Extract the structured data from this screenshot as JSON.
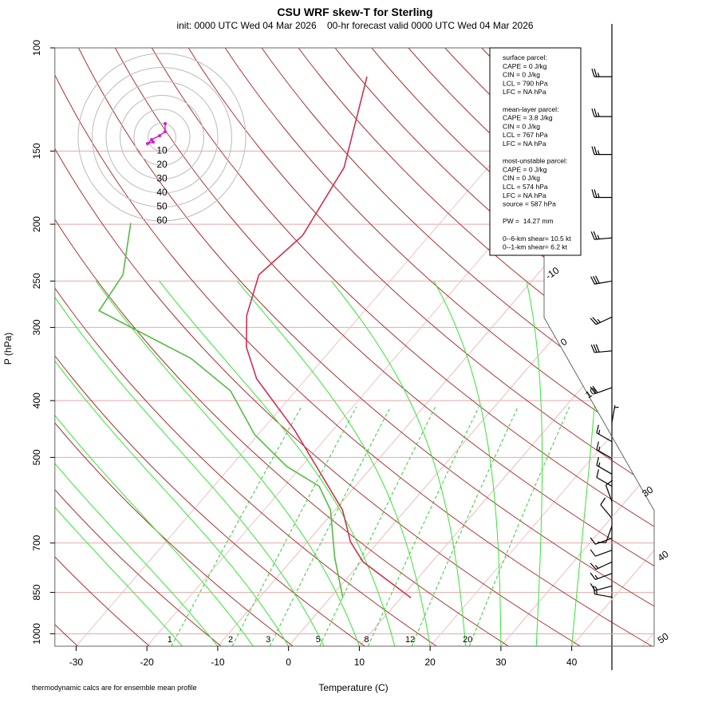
{
  "chart_data": {
    "type": "skewt",
    "title": "CSU WRF skew-T for Sterling",
    "subtitle": "init: 0000 UTC Wed 04 Mar 2026    00-hr forecast valid 0000 UTC Wed 04 Mar 2026",
    "xlabel": "Temperature (C)",
    "ylabel": "P (hPa)",
    "footnote": "thermodynamic calcs are for ensemble mean profile",
    "xlim": [
      -33,
      45
    ],
    "xticks": [
      -30,
      -20,
      -10,
      0,
      10,
      20,
      30,
      40
    ],
    "ylim": [
      1050,
      100
    ],
    "yticks": [
      100,
      150,
      200,
      250,
      300,
      400,
      500,
      700,
      850,
      1000
    ],
    "log_scale": "y",
    "grid": true,
    "isotherm_labels": [
      -10,
      0,
      10,
      30,
      40,
      50
    ],
    "mixing_ratio_lines": [
      1,
      2,
      3,
      5,
      8,
      12,
      20
    ],
    "series": [
      {
        "name": "temperature",
        "color": "#d03050",
        "pressure": [
          868,
          754,
          697,
          615,
          526,
          450,
          367,
          324,
          286,
          244,
          209,
          160,
          112
        ],
        "values": [
          11.4,
          0.3,
          -3.9,
          -8.9,
          -17.1,
          -25.3,
          -37.0,
          -42.3,
          -46.1,
          -49.3,
          -47.9,
          -50.3,
          -58.1
        ]
      },
      {
        "name": "dewpoint",
        "color": "#55bb44",
        "pressure": [
          868,
          742,
          615,
          560,
          518,
          457,
          385,
          339,
          281,
          244,
          199
        ],
        "values": [
          1.8,
          -4.2,
          -10.6,
          -15.1,
          -22.1,
          -30.5,
          -39.2,
          -48.7,
          -67.5,
          -68.5,
          -73.7
        ]
      }
    ],
    "hodograph": {
      "rings": [
        10,
        20,
        30,
        40,
        50,
        60
      ],
      "color": "#cc22cc",
      "u": [
        2.3,
        2.3,
        -1.7,
        -7.4,
        -10.3,
        -6.3
      ],
      "v": [
        9.7,
        4,
        1.1,
        -1.7,
        -4.6,
        -3.4
      ]
    },
    "winds": {
      "pressure": [
        112,
        131,
        152,
        180,
        211,
        250,
        288,
        329,
        380,
        436,
        470,
        502,
        534,
        560,
        595,
        635,
        655,
        687,
        720,
        754,
        789,
        829,
        866
      ],
      "direction": [
        270,
        270,
        270,
        270,
        265,
        260,
        245,
        265,
        250,
        10,
        300,
        300,
        300,
        300,
        340,
        320,
        200,
        250,
        250,
        245,
        250,
        255,
        280
      ],
      "speed": [
        25,
        25,
        25,
        25,
        25,
        30,
        25,
        30,
        20,
        5,
        15,
        15,
        15,
        10,
        10,
        10,
        10,
        10,
        10,
        15,
        15,
        15,
        15
      ]
    },
    "info_box": [
      [
        "surface parcel:",
        "CAPE = 0 J/kg",
        "CIN = 0 J/kg",
        "LCL = 790 hPa",
        "LFC = NA hPa"
      ],
      [
        "mean-layer parcel:",
        "CAPE = 3.8 J/kg",
        "CIN = 0 J/kg",
        "LCL = 767 hPa",
        "LFC = NA hPa"
      ],
      [
        "most-unstable parcel:",
        "CAPE = 0 J/kg",
        "CIN = 0 J/kg",
        "LCL = 574 hPa",
        "LFC = NA hPa",
        "source = 587 hPa"
      ],
      [
        "PW =  14.27 mm"
      ],
      [
        "0--6-km shear= 10.5 kt",
        "0--1-km shear= 6.2 kt"
      ]
    ]
  }
}
